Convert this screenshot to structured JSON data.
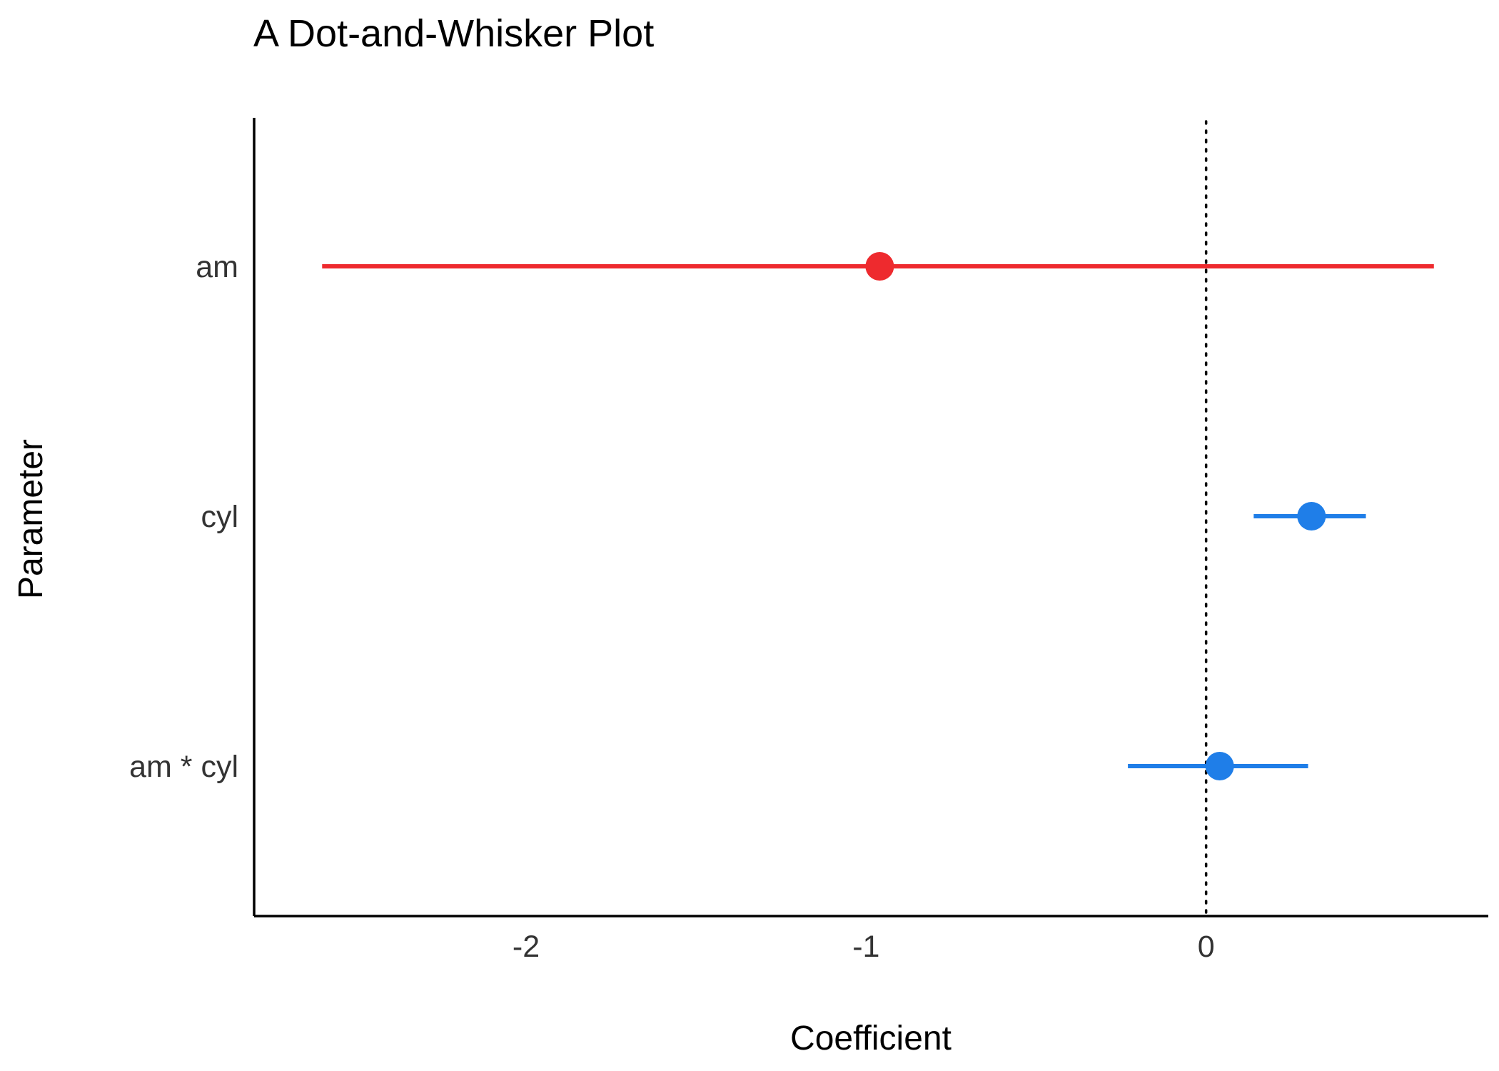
{
  "chart_data": {
    "type": "scatter",
    "title": "A Dot-and-Whisker Plot",
    "xlabel": "Coefficient",
    "ylabel": "Parameter",
    "xlim": [
      -2.8,
      0.83
    ],
    "x_ticks": [
      -2,
      -1,
      0
    ],
    "x_tick_labels": [
      "-2",
      "-1",
      "0"
    ],
    "reference_line": {
      "x": 0,
      "style": "dotted"
    },
    "grid": false,
    "legend": "none",
    "categories": [
      "am",
      "cyl",
      "am * cyl"
    ],
    "points": [
      {
        "label": "am",
        "estimate": -0.96,
        "low": -2.6,
        "high": 0.67,
        "color": "#ee2a2e"
      },
      {
        "label": "cyl",
        "estimate": 0.31,
        "low": 0.14,
        "high": 0.47,
        "color": "#1f7ee8"
      },
      {
        "label": "am * cyl",
        "estimate": 0.04,
        "low": -0.23,
        "high": 0.3,
        "color": "#1f7ee8"
      }
    ]
  }
}
